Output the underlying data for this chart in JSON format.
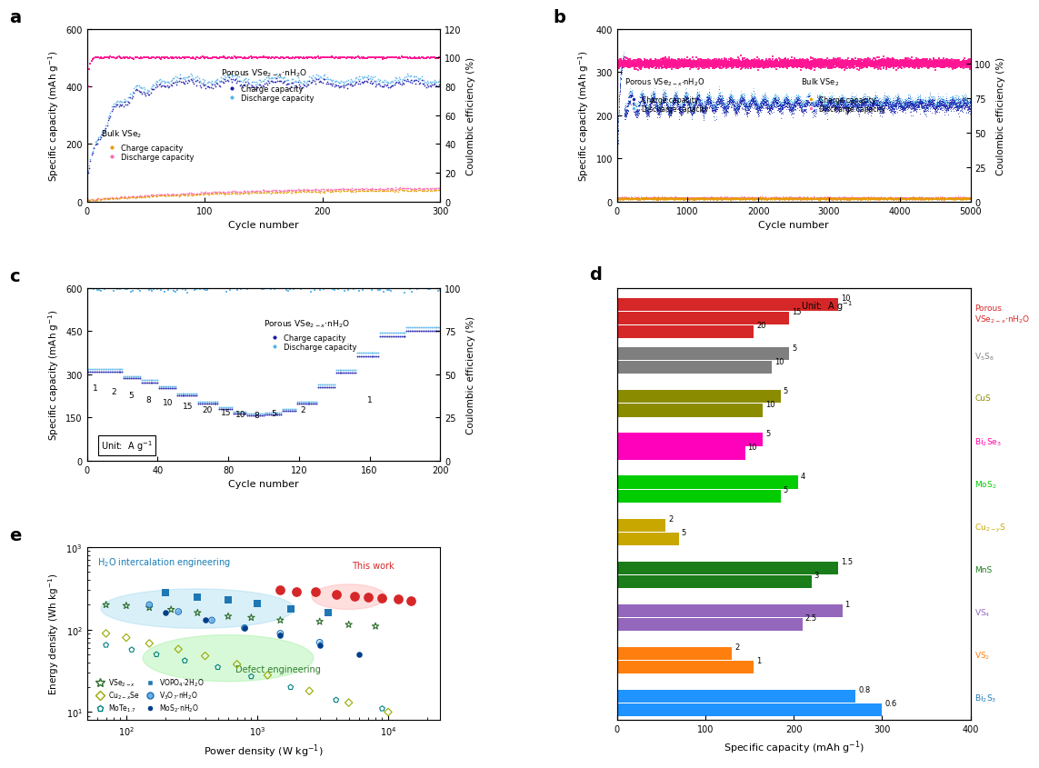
{
  "colors": {
    "porous_charge": "#1a1aaa",
    "porous_discharge": "#56b4e9",
    "bulk_charge": "#e69f00",
    "bulk_discharge": "#ff69b4",
    "coulombic_sq": "#ff1493",
    "ce_blue_sq": "#56b4e9"
  },
  "panel_d": {
    "mat_labels": [
      "Bi$_2$S$_3$",
      "VS$_2$",
      "VS$_4$",
      "MnS",
      "Cu$_{2-y}$S",
      "MoS$_2$",
      "Bi$_2$Se$_3$",
      "CuS",
      "V$_5$S$_8$",
      "Porous\nVSe$_{2-x}$$\\cdot$nH$_2$O"
    ],
    "mat_colors_right": [
      "#1F77B4",
      "#FF7F0E",
      "#9467BD",
      "#1a7d1a",
      "#c8a800",
      "#00CC00",
      "#FF00AA",
      "#8B8B00",
      "#7F7F7F",
      "#D62728"
    ],
    "bar_data": [
      {
        "vals": [
          300,
          270
        ],
        "rates": [
          "0.6",
          "0.8"
        ],
        "color": "#1F93FF"
      },
      {
        "vals": [
          155,
          130
        ],
        "rates": [
          "1",
          "2"
        ],
        "color": "#FF7F0E"
      },
      {
        "vals": [
          210,
          255
        ],
        "rates": [
          "2.5",
          "1"
        ],
        "color": "#9467BD"
      },
      {
        "vals": [
          220,
          250
        ],
        "rates": [
          "3",
          "1.5"
        ],
        "color": "#1a7d1a"
      },
      {
        "vals": [
          70,
          55
        ],
        "rates": [
          "5",
          "2"
        ],
        "color": "#c8a800"
      },
      {
        "vals": [
          185,
          205
        ],
        "rates": [
          "5",
          "4"
        ],
        "color": "#00CC00"
      },
      {
        "vals": [
          145,
          165
        ],
        "rates": [
          "10",
          "5"
        ],
        "color": "#FF00BB"
      },
      {
        "vals": [
          165,
          185
        ],
        "rates": [
          "10",
          "5"
        ],
        "color": "#8B8B00"
      },
      {
        "vals": [
          175,
          195
        ],
        "rates": [
          "10",
          "5"
        ],
        "color": "#7F7F7F"
      },
      {
        "vals": [
          155,
          195,
          250
        ],
        "rates": [
          "20",
          "15",
          "10"
        ],
        "color": "#D62728"
      }
    ]
  }
}
